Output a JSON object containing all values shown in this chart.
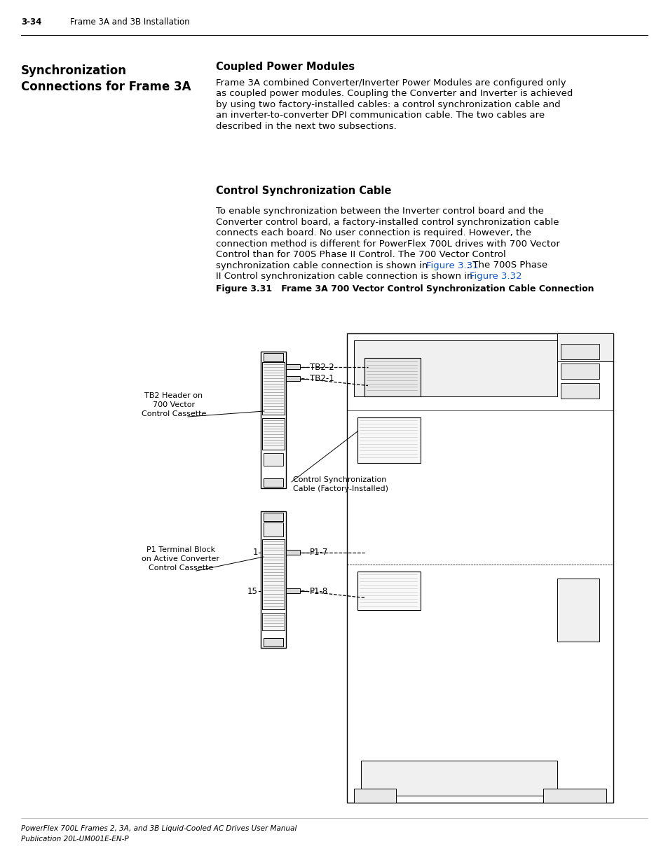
{
  "bg_color": "#ffffff",
  "page_number": "3-34",
  "page_header_text": "Frame 3A and 3B Installation",
  "left_section_title": "Synchronization\nConnections for Frame 3A",
  "right_section1_title": "Coupled Power Modules",
  "right_section1_body_lines": [
    "Frame 3A combined Converter/Inverter Power Modules are configured only",
    "as coupled power modules. Coupling the Converter and Inverter is achieved",
    "by using two factory-installed cables: a control synchronization cable and",
    "an inverter-to-converter DPI communication cable. The two cables are",
    "described in the next two subsections."
  ],
  "right_section2_title": "Control Synchronization Cable",
  "right_section2_body_lines": [
    "To enable synchronization between the Inverter control board and the",
    "Converter control board, a factory-installed control synchronization cable",
    "connects each board. No user connection is required. However, the",
    "connection method is different for PowerFlex 700L drives with 700 Vector",
    "Control than for 700S Phase II Control. The 700 Vector Control",
    "synchronization cable connection is shown in [Figure 3.31]. The 700S Phase",
    "II Control synchronization cable connection is shown in [Figure 3.32]."
  ],
  "figure_caption": "Figure 3.31   Frame 3A 700 Vector Control Synchronization Cable Connection",
  "footer_line1": "PowerFlex 700L Frames 2, 3A, and 3B Liquid-Cooled AC Drives User Manual",
  "footer_line2": "Publication 20L-UM001E-EN-P",
  "link_color": "#1155cc",
  "text_color": "#000000"
}
